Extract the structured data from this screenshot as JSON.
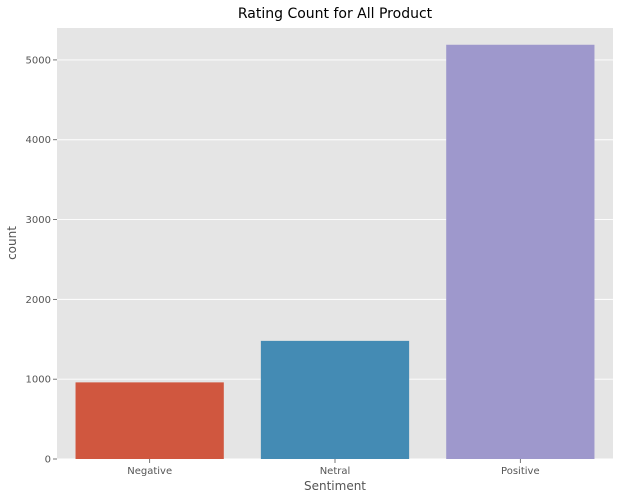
{
  "chart_data": {
    "type": "bar",
    "title": "Rating Count for All Product",
    "xlabel": "Sentiment",
    "ylabel": "count",
    "categories": [
      "Negative",
      "Netral",
      "Positive"
    ],
    "values": [
      960,
      1480,
      5190
    ],
    "colors": [
      "#d0573f",
      "#448bb4",
      "#9e98cc"
    ],
    "ylim": [
      0,
      5400
    ],
    "yticks": [
      0,
      1000,
      2000,
      3000,
      4000,
      5000
    ],
    "grid": true,
    "background": "#e5e5e5",
    "grid_color": "#ffffff"
  }
}
